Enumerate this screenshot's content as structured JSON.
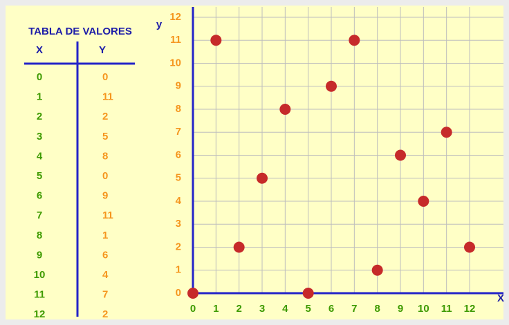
{
  "chart_data": {
    "type": "scatter",
    "table_title": "TABLA DE VALORES",
    "table_headers": [
      "X",
      "Y"
    ],
    "x_label": "X",
    "y_label": "y",
    "x": [
      0,
      1,
      2,
      3,
      4,
      5,
      6,
      7,
      8,
      9,
      10,
      11,
      12
    ],
    "values": [
      0,
      11,
      2,
      5,
      8,
      0,
      9,
      11,
      1,
      6,
      4,
      7,
      2
    ],
    "color": "#c62a2a",
    "xlim": [
      0,
      13.47
    ],
    "ylim": [
      0,
      12.45
    ],
    "xticks": [
      0,
      1,
      2,
      3,
      4,
      5,
      6,
      7,
      8,
      9,
      10,
      11,
      12
    ],
    "yticks": [
      0,
      1,
      2,
      3,
      4,
      5,
      6,
      7,
      8,
      9,
      10,
      11,
      12
    ],
    "grid": true
  }
}
